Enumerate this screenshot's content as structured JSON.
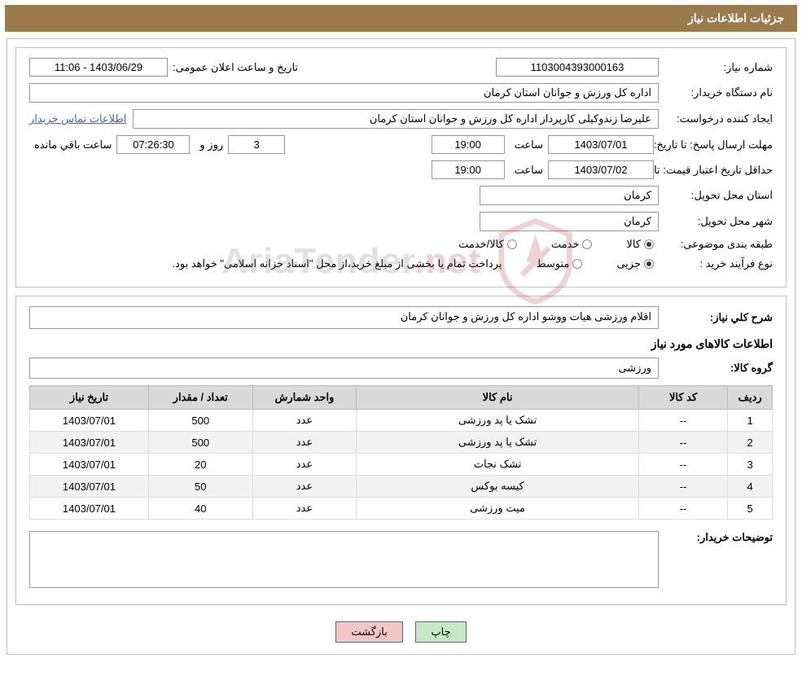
{
  "colors": {
    "header_bg": "#9b7a4d",
    "header_fg": "#ffffff",
    "border": "#c0c0c0",
    "table_header_bg": "#d9d9d9",
    "table_row_alt": "#f2f2f2",
    "btn_print_bg": "#c6e8c6",
    "btn_back_bg": "#f4c6c6",
    "link": "#3366cc",
    "watermark_accent": "#b33333"
  },
  "header": {
    "title": "جزئیات اطلاعات نیاز"
  },
  "fields": {
    "need_number": {
      "label": "شماره نیاز:",
      "value": "1103004393000163"
    },
    "announce": {
      "label": "تاریخ و ساعت اعلان عمومی:",
      "value": "1403/06/29 - 11:06"
    },
    "buyer_org": {
      "label": "نام دستگاه خریدار:",
      "value": "اداره کل ورزش و جوانان استان کرمان"
    },
    "requester": {
      "label": "ایجاد کننده درخواست:",
      "value": "علیرضا  زندوکیلی  کارپرداز اداره کل ورزش و جوانان استان کرمان"
    },
    "contact_link": "اطلاعات تماس خریدار",
    "reply_deadline": {
      "label": "مهلت ارسال پاسخ: تا تاریخ:",
      "date": "1403/07/01",
      "time_label": "ساعت",
      "time": "19:00",
      "days": "3",
      "days_label": "روز و",
      "countdown": "07:26:30",
      "remaining_label": "ساعت باقي مانده"
    },
    "price_validity": {
      "label": "حداقل تاریخ اعتبار قیمت: تا تاریخ:",
      "date": "1403/07/02",
      "time_label": "ساعت",
      "time": "19:00"
    },
    "delivery_province": {
      "label": "استان محل تحویل:",
      "value": "کرمان"
    },
    "delivery_city": {
      "label": "شهر محل تحویل:",
      "value": "کرمان"
    },
    "category": {
      "label": "طبقه بندی موضوعی:",
      "options": [
        "کالا",
        "خدمت",
        "کالا/خدمت"
      ],
      "selected": 0
    },
    "purchase_type": {
      "label": "نوع فرآیند خرید :",
      "options": [
        "جزیی",
        "متوسط"
      ],
      "selected": 0,
      "note": "پرداخت تمام یا بخشی از مبلغ خرید،از محل \"اسناد خزانه اسلامی\" خواهد بود."
    }
  },
  "need_summary": {
    "label": "شرح کلي نیاز:",
    "text": "اقلام ورزشی هیات ووشو اداره کل ورزش و جوانان کرمان"
  },
  "goods_section_title": "اطلاعات کالاهای مورد نیاز",
  "goods_group": {
    "label": "گروه کالا:",
    "value": "ورزشی"
  },
  "table": {
    "columns": [
      "ردیف",
      "کد کالا",
      "نام کالا",
      "واحد شمارش",
      "تعداد / مقدار",
      "تاریخ نیاز"
    ],
    "col_widths": [
      "6%",
      "12%",
      "38%",
      "14%",
      "14%",
      "16%"
    ],
    "rows": [
      {
        "n": "1",
        "code": "--",
        "name": "تشک یا پد ورزشی",
        "unit": "عدد",
        "qty": "500",
        "date": "1403/07/01"
      },
      {
        "n": "2",
        "code": "--",
        "name": "تشک یا پد ورزشی",
        "unit": "عدد",
        "qty": "500",
        "date": "1403/07/01"
      },
      {
        "n": "3",
        "code": "--",
        "name": "تشک نجات",
        "unit": "عدد",
        "qty": "20",
        "date": "1403/07/01"
      },
      {
        "n": "4",
        "code": "--",
        "name": "کیسه بوکس",
        "unit": "عدد",
        "qty": "50",
        "date": "1403/07/01"
      },
      {
        "n": "5",
        "code": "--",
        "name": "میت ورزشی",
        "unit": "عدد",
        "qty": "40",
        "date": "1403/07/01"
      }
    ]
  },
  "buyer_notes": {
    "label": "توضیحات خریدار:",
    "text": ""
  },
  "buttons": {
    "print": "چاپ",
    "back": "بازگشت"
  },
  "watermark": {
    "text_a": "AriaTender",
    "text_b": ".net"
  }
}
